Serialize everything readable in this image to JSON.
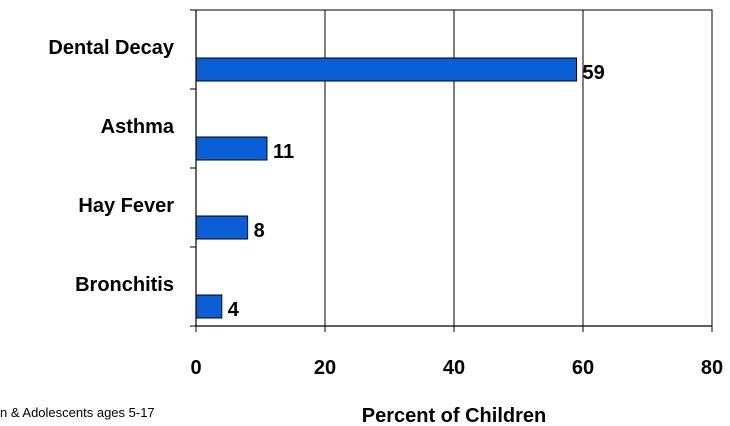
{
  "chart_data": {
    "type": "bar",
    "orientation": "horizontal",
    "categories": [
      "Dental Decay",
      "Asthma",
      "Hay Fever",
      "Bronchitis"
    ],
    "values": [
      59,
      11,
      8,
      4
    ],
    "data_labels": [
      "59",
      "11",
      "8",
      "4"
    ],
    "xlabel": "Percent of Children",
    "xlim": [
      0,
      80
    ],
    "xticks": [
      0,
      20,
      40,
      60,
      80
    ],
    "xtick_labels": [
      "0",
      "20",
      "40",
      "60",
      "80"
    ],
    "grid": "vertical",
    "bar_color": "#0a5ed6",
    "bar_edge_color": "#000000"
  },
  "footnote": "n & Adolescents ages 5-17"
}
